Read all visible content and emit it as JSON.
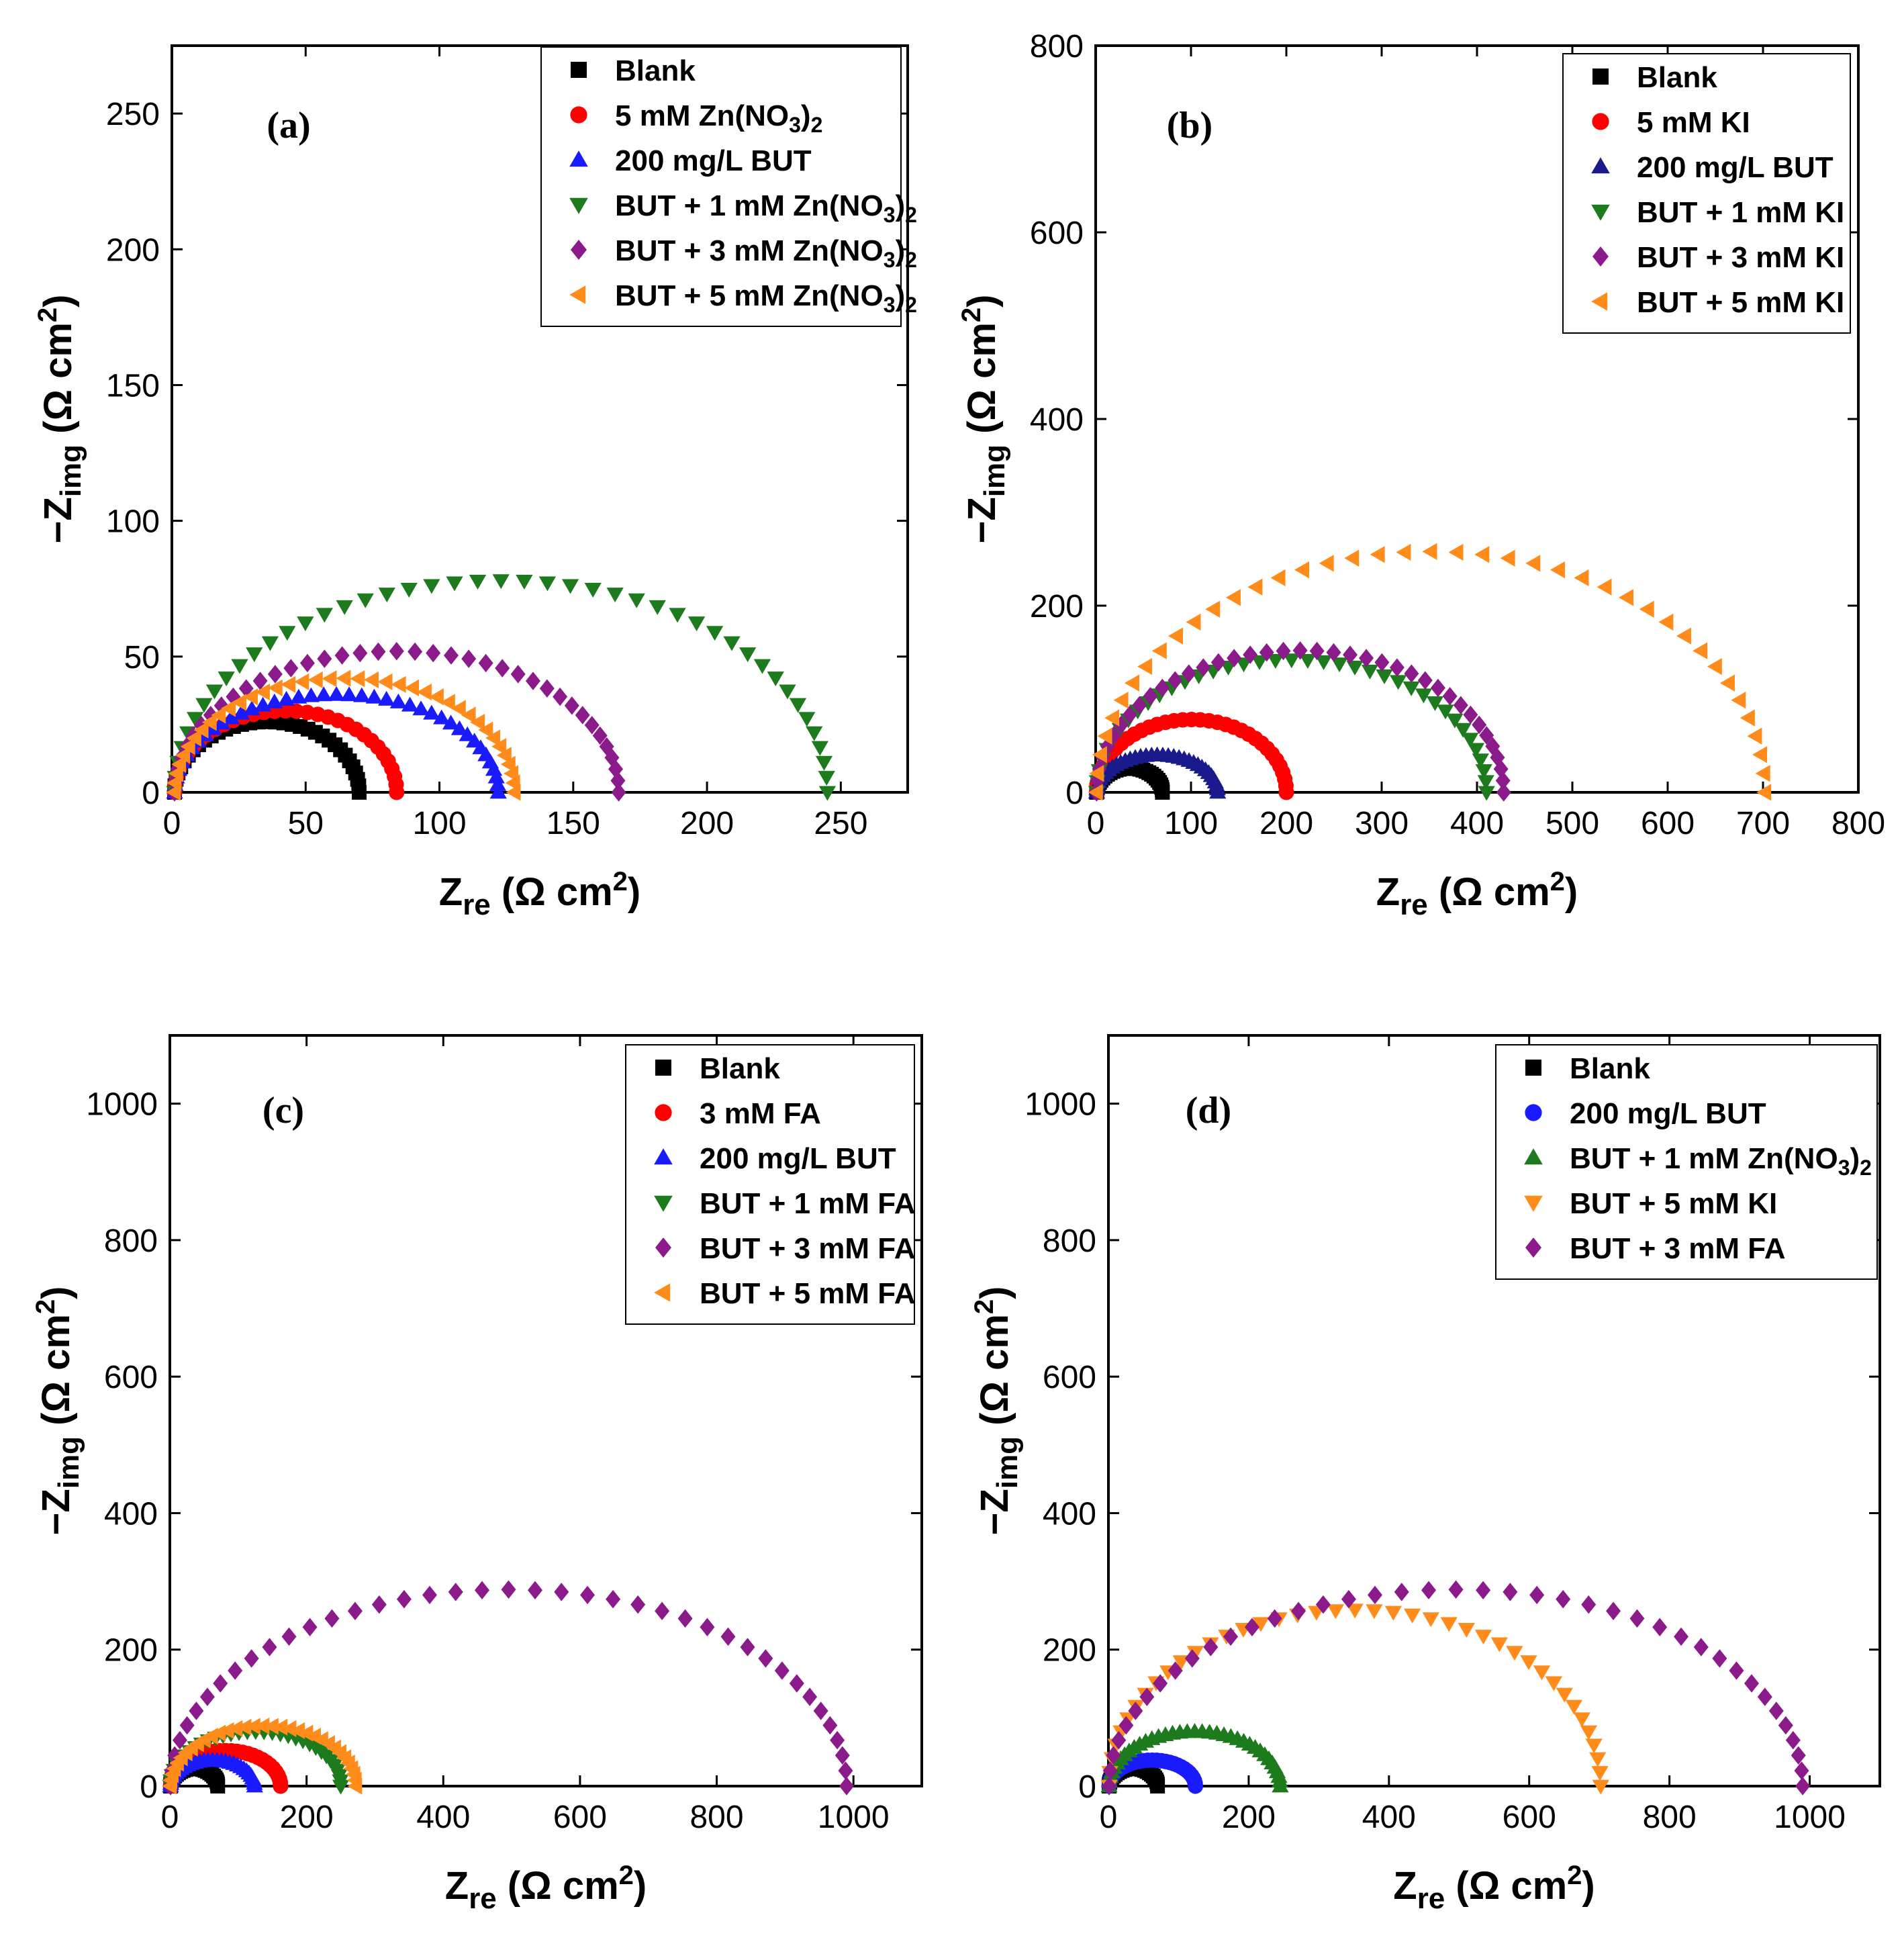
{
  "colors": {
    "black": "#000000",
    "red": "#ff0000",
    "blue": "#1a1aff",
    "navy": "#1a1a8c",
    "green": "#1d7a1d",
    "purple": "#8b1a8b",
    "orange": "#ff8c1a"
  },
  "chart_data": [
    {
      "panel": "(a)",
      "type": "scatter",
      "xlabel": "Zre (Ω cm2)",
      "ylabel": "−Zimg (Ω cm2)",
      "xlim": [
        0,
        275
      ],
      "ylim": [
        0,
        275
      ],
      "xticks": [
        0,
        50,
        100,
        150,
        200,
        250
      ],
      "yticks": [
        0,
        50,
        100,
        150,
        200,
        250
      ],
      "series": [
        {
          "name": "Blank",
          "legend": [
            "Blank"
          ],
          "marker": "square",
          "color": "black",
          "r0": 1,
          "r1": 70,
          "peak": 26,
          "count": 34
        },
        {
          "name": "5 mM Zn(NO3)2",
          "legend": [
            "5 mM Zn(NO",
            "3",
            ")",
            "2"
          ],
          "marker": "circle",
          "color": "red",
          "r0": 1,
          "r1": 84,
          "peak": 30,
          "count": 32
        },
        {
          "name": "200 mg/L BUT",
          "legend": [
            "200 mg/L BUT"
          ],
          "marker": "triangle-up",
          "color": "blue",
          "r0": 1,
          "r1": 122,
          "peak": 36,
          "count": 40
        },
        {
          "name": "BUT + 1 mM Zn(NO3)2",
          "legend": [
            "BUT + 1 mM Zn(NO",
            "3",
            ")",
            "2"
          ],
          "marker": "triangle-down",
          "color": "green",
          "r0": 1,
          "r1": 245,
          "peak": 78,
          "count": 44
        },
        {
          "name": "BUT + 3 mM Zn(NO3)2",
          "legend": [
            "BUT + 3 mM Zn(NO",
            "3",
            ")",
            "2"
          ],
          "marker": "diamond",
          "color": "purple",
          "r0": 1,
          "r1": 167,
          "peak": 52,
          "count": 38
        },
        {
          "name": "BUT + 5 mM Zn(NO3)2",
          "legend": [
            "BUT + 5 mM Zn(NO",
            "3",
            ")",
            "2"
          ],
          "marker": "triangle-left",
          "color": "orange",
          "r0": 1,
          "r1": 128,
          "peak": 42,
          "count": 38
        }
      ]
    },
    {
      "panel": "(b)",
      "type": "scatter",
      "xlabel": "Zre (Ω cm2)",
      "ylabel": "−Zimg (Ω cm2)",
      "xlim": [
        0,
        800
      ],
      "ylim": [
        0,
        800
      ],
      "xticks": [
        0,
        100,
        200,
        300,
        400,
        500,
        600,
        700,
        800
      ],
      "yticks": [
        0,
        200,
        400,
        600,
        800
      ],
      "series": [
        {
          "name": "Blank",
          "legend": [
            "Blank"
          ],
          "marker": "square",
          "color": "black",
          "r0": 1,
          "r1": 70,
          "peak": 26,
          "count": 30
        },
        {
          "name": "5 mM KI",
          "legend": [
            "5 mM KI"
          ],
          "marker": "circle",
          "color": "red",
          "r0": 1,
          "r1": 200,
          "peak": 78,
          "count": 34
        },
        {
          "name": "200 mg/L BUT",
          "legend": [
            "200 mg/L BUT"
          ],
          "marker": "triangle-up",
          "color": "navy",
          "r0": 1,
          "r1": 128,
          "peak": 40,
          "count": 34
        },
        {
          "name": "BUT + 1 mM KI",
          "legend": [
            "BUT + 1 mM KI"
          ],
          "marker": "triangle-down",
          "color": "green",
          "r0": 1,
          "r1": 410,
          "peak": 142,
          "count": 38
        },
        {
          "name": "BUT + 3 mM KI",
          "legend": [
            "BUT + 3 mM KI"
          ],
          "marker": "diamond",
          "color": "purple",
          "r0": 1,
          "r1": 428,
          "peak": 152,
          "count": 38
        },
        {
          "name": "BUT + 5 mM KI",
          "legend": [
            "BUT + 5 mM KI"
          ],
          "marker": "triangle-left",
          "color": "orange",
          "r0": 1,
          "r1": 702,
          "peak": 258,
          "count": 40
        }
      ]
    },
    {
      "panel": "(c)",
      "type": "scatter",
      "xlabel": "Zre (Ω cm2)",
      "ylabel": "−Zimg (Ω cm2)",
      "xlim": [
        0,
        1100
      ],
      "ylim": [
        0,
        1100
      ],
      "xticks": [
        0,
        200,
        400,
        600,
        800,
        1000
      ],
      "yticks": [
        0,
        200,
        400,
        600,
        800,
        1000
      ],
      "series": [
        {
          "name": "Blank",
          "legend": [
            "Blank"
          ],
          "marker": "square",
          "color": "black",
          "r0": 1,
          "r1": 70,
          "peak": 26,
          "count": 26
        },
        {
          "name": "3 mM FA",
          "legend": [
            "3 mM FA"
          ],
          "marker": "circle",
          "color": "red",
          "r0": 1,
          "r1": 162,
          "peak": 52,
          "count": 30
        },
        {
          "name": "200 mg/L BUT",
          "legend": [
            "200 mg/L BUT"
          ],
          "marker": "triangle-up",
          "color": "blue",
          "r0": 1,
          "r1": 124,
          "peak": 38,
          "count": 30
        },
        {
          "name": "BUT + 1 mM FA",
          "legend": [
            "BUT + 1 mM FA"
          ],
          "marker": "triangle-down",
          "color": "green",
          "r0": 1,
          "r1": 250,
          "peak": 80,
          "count": 32
        },
        {
          "name": "BUT + 3 mM FA",
          "legend": [
            "BUT + 3 mM FA"
          ],
          "marker": "diamond",
          "color": "purple",
          "r0": 1,
          "r1": 990,
          "peak": 288,
          "count": 40
        },
        {
          "name": "BUT + 5 mM FA",
          "legend": [
            "BUT + 5 mM FA"
          ],
          "marker": "triangle-left",
          "color": "orange",
          "r0": 1,
          "r1": 272,
          "peak": 88,
          "count": 32
        }
      ]
    },
    {
      "panel": "(d)",
      "type": "scatter",
      "xlabel": "Zre (Ω cm2)",
      "ylabel": "−Zimg (Ω cm2)",
      "xlim": [
        0,
        1100
      ],
      "ylim": [
        0,
        1100
      ],
      "xticks": [
        0,
        200,
        400,
        600,
        800,
        1000
      ],
      "yticks": [
        0,
        200,
        400,
        600,
        800,
        1000
      ],
      "series": [
        {
          "name": "Blank",
          "legend": [
            "Blank"
          ],
          "marker": "square",
          "color": "black",
          "r0": 1,
          "r1": 70,
          "peak": 26,
          "count": 26
        },
        {
          "name": "200 mg/L BUT",
          "legend": [
            "200 mg/L BUT"
          ],
          "marker": "circle",
          "color": "blue",
          "r0": 1,
          "r1": 124,
          "peak": 38,
          "count": 30
        },
        {
          "name": "BUT + 1 mM Zn(NO3)2",
          "legend": [
            "BUT + 1 mM Zn(NO",
            "3",
            ")",
            "2"
          ],
          "marker": "triangle-up",
          "color": "green",
          "r0": 1,
          "r1": 245,
          "peak": 80,
          "count": 36
        },
        {
          "name": "BUT + 5 mM KI",
          "legend": [
            "BUT + 5 mM KI"
          ],
          "marker": "triangle-down",
          "color": "orange",
          "r0": 1,
          "r1": 702,
          "peak": 258,
          "count": 40
        },
        {
          "name": "BUT + 3 mM FA",
          "legend": [
            "BUT + 3 mM FA"
          ],
          "marker": "diamond",
          "color": "purple",
          "r0": 1,
          "r1": 990,
          "peak": 288,
          "count": 40
        }
      ]
    }
  ]
}
